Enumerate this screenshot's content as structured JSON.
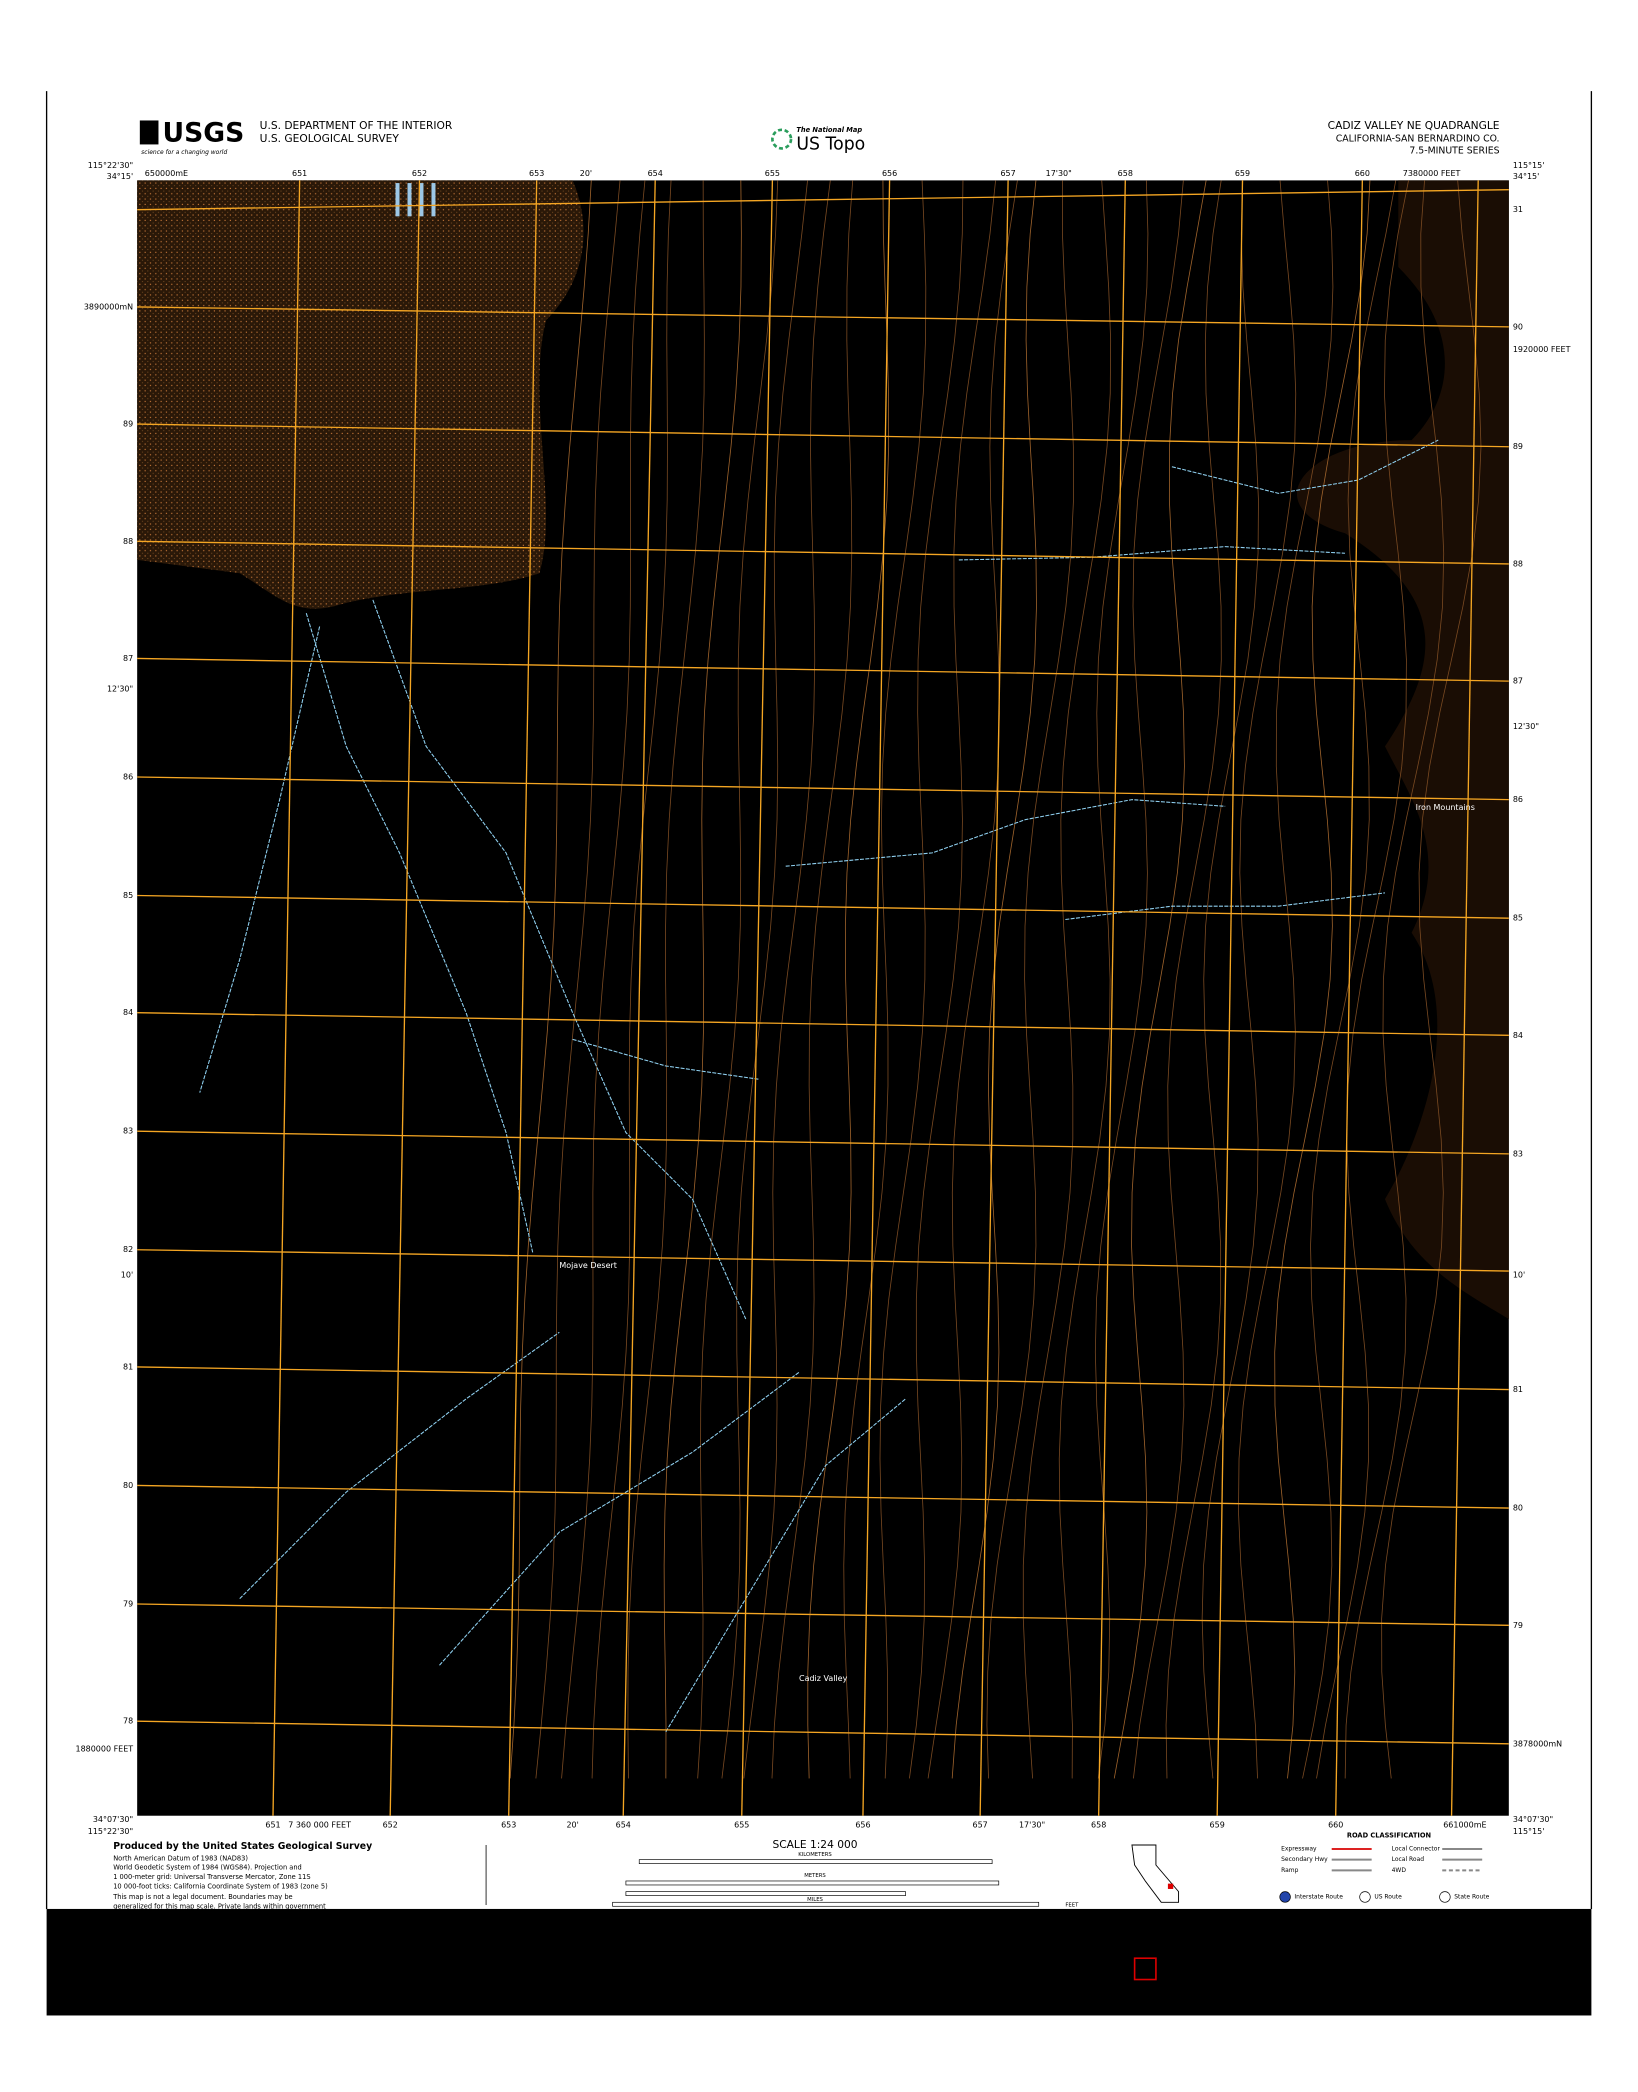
{
  "header": {
    "logo": "USGS",
    "logo_tagline": "science for a changing world",
    "department": "U.S. DEPARTMENT OF THE INTERIOR",
    "survey": "U.S. GEOLOGICAL SURVEY",
    "national_map": "The National Map",
    "us_topo": "US Topo",
    "quad_title": "CADIZ VALLEY NE QUADRANGLE",
    "state_county": "CALIFORNIA-SAN BERNARDINO CO.",
    "series": "7.5-MINUTE SERIES"
  },
  "map": {
    "corners": {
      "nw_lat": "34°15'",
      "nw_lon": "115°22'30\"",
      "ne_lat": "34°15'",
      "ne_lon": "115°15'",
      "sw_lat": "34°07'30\"",
      "sw_lon": "115°22'30\"",
      "se_lat": "34°07'30\"",
      "se_lon": "115°15'"
    },
    "top_labels": [
      "650000mE",
      "651",
      "652",
      "653",
      "20'",
      "654",
      "655",
      "656",
      "657",
      "17'30\"",
      "658",
      "659",
      "660",
      "7380000 FEET"
    ],
    "left_labels": [
      "3890000mN",
      "89",
      "88",
      "87",
      "12'30\"",
      "86",
      "85",
      "84",
      "83",
      "82",
      "10'",
      "81",
      "80",
      "79",
      "78",
      "1880000 FEET"
    ],
    "right_labels": [
      "31",
      "90",
      "1920000 FEET",
      "89",
      "88",
      "87",
      "12'30\"",
      "86",
      "85",
      "84",
      "83",
      "10'",
      "81",
      "80",
      "79",
      "3878000mN"
    ],
    "bottom_labels": [
      "651",
      "7 360 000 FEET",
      "652",
      "653",
      "20'",
      "654",
      "655",
      "656",
      "657",
      "17'30\"",
      "658",
      "659",
      "660",
      "661000mE"
    ],
    "places": [
      "Mojave Desert",
      "Cadiz Valley",
      "Iron Mountains"
    ]
  },
  "footer": {
    "notes": [
      "Produced by the United States Geological Survey",
      "North American Datum of 1983 (NAD83)",
      "World Geodetic System of 1984 (WGS84). Projection and",
      "1 000-meter grid: Universal Transverse Mercator, Zone 11S",
      "10 000-foot ticks: California Coordinate System of 1983 (zone 5)",
      "This map is not a legal document. Boundaries may be",
      "generalized for this map scale. Private lands within government"
    ],
    "scale": "SCALE 1:24 000",
    "units": [
      "KILOMETERS",
      "METERS",
      "MILES",
      "FEET"
    ],
    "road_title": "ROAD CLASSIFICATION",
    "roads": [
      "Expressway",
      "Secondary Hwy",
      "Ramp",
      "Local Connector",
      "Local Road",
      "4WD"
    ],
    "routes": [
      "Interstate Route",
      "US Route",
      "State Route"
    ]
  }
}
